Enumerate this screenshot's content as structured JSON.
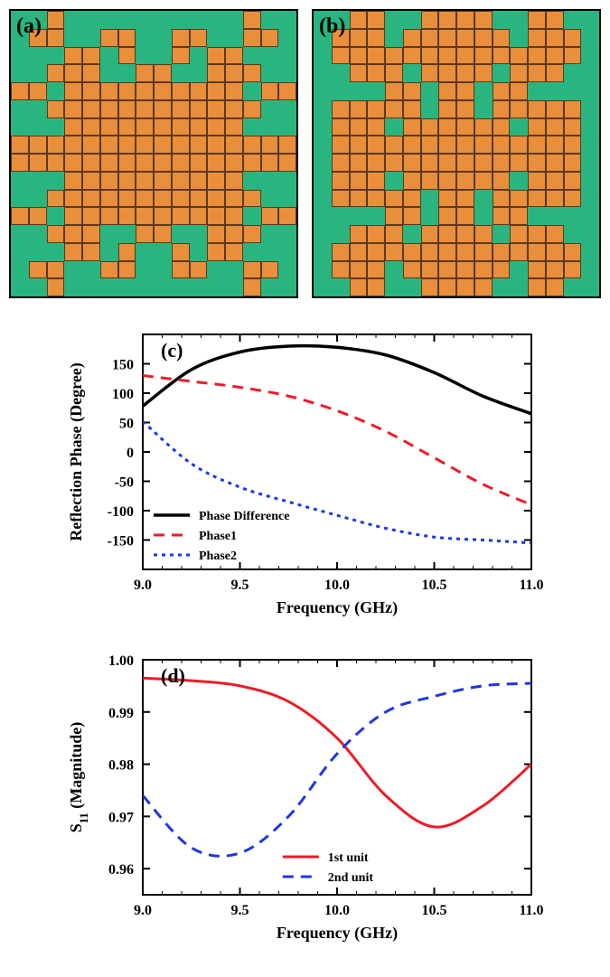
{
  "panel_a": {
    "label": "(a)",
    "bg_color": "#29b580",
    "cell_color": "#e98e3a",
    "cell_border": "#5a3a1a",
    "grid_size": 16,
    "rows": [
      "0010000000000100",
      "0110011001100110",
      "0001101001011000",
      "0011100110011100",
      "1101111111111011",
      "0011111111111100",
      "0001111111111000",
      "1111111111111111",
      "1111111111111111",
      "0001111111111000",
      "0011111111111100",
      "1101111111111011",
      "0011100110011100",
      "0001101001011000",
      "0110011001100110",
      "0010000000000100"
    ]
  },
  "panel_b": {
    "label": "(b)",
    "bg_color": "#29b580",
    "cell_color": "#e98e3a",
    "cell_border": "#5a3a1a",
    "grid_size": 16,
    "rows": [
      "0011001111001100",
      "0111011111101110",
      "0111111111111110",
      "0011101111011100",
      "0000110110110000",
      "0111110110111110",
      "0111011111101110",
      "0111111111111110",
      "0111111111111110",
      "0111011111101110",
      "0111110110111110",
      "0000110110110000",
      "0011101111011100",
      "0111111111111110",
      "0111011111101110",
      "0011001111001100"
    ]
  },
  "chart_c": {
    "label": "(c)",
    "type": "line",
    "xlabel": "Frequency (GHz)",
    "ylabel": "Reflection Phase (Degree)",
    "xlim": [
      9.0,
      11.0
    ],
    "ylim": [
      -200,
      200
    ],
    "xticks": [
      9.0,
      9.5,
      10.0,
      10.5,
      11.0
    ],
    "yticks": [
      -150,
      -100,
      -50,
      0,
      50,
      100,
      150
    ],
    "axis_fontsize": 18,
    "tick_fontsize": 16,
    "label_fontsize": 16,
    "axis_color": "#000000",
    "background_color": "#ffffff",
    "legend_position": "bottom-left",
    "legend_fontsize": 14,
    "series": [
      {
        "name": "Phase Difference",
        "color": "#000000",
        "style": "solid",
        "width": 3.5,
        "x": [
          9.0,
          9.25,
          9.5,
          9.75,
          10.0,
          10.25,
          10.5,
          10.75,
          11.0
        ],
        "y": [
          78,
          140,
          170,
          180,
          178,
          165,
          135,
          95,
          65
        ]
      },
      {
        "name": "Phase1",
        "color": "#ed1c24",
        "style": "dashed",
        "dash": "12,8",
        "width": 3,
        "x": [
          9.0,
          9.25,
          9.5,
          9.75,
          10.0,
          10.25,
          10.5,
          10.75,
          11.0
        ],
        "y": [
          130,
          120,
          110,
          95,
          70,
          35,
          -10,
          -55,
          -90
        ]
      },
      {
        "name": "Phase2",
        "color": "#1b37e6",
        "style": "dotted",
        "dash": "4,5",
        "width": 3,
        "x": [
          9.0,
          9.25,
          9.5,
          9.75,
          10.0,
          10.25,
          10.5,
          10.75,
          11.0
        ],
        "y": [
          52,
          -20,
          -60,
          -85,
          -108,
          -130,
          -145,
          -150,
          -155
        ]
      }
    ]
  },
  "chart_d": {
    "label": "(d)",
    "type": "line",
    "xlabel": "Frequency (GHz)",
    "ylabel": "S₁₁ (Magnitude)",
    "ylabel_plain": "S11 (Magnitude)",
    "xlim": [
      9.0,
      11.0
    ],
    "ylim": [
      0.955,
      1.0
    ],
    "xticks": [
      9.0,
      9.5,
      10.0,
      10.5,
      11.0
    ],
    "yticks": [
      0.96,
      0.97,
      0.98,
      0.99,
      1.0
    ],
    "axis_fontsize": 18,
    "tick_fontsize": 16,
    "label_fontsize": 16,
    "axis_color": "#000000",
    "background_color": "#ffffff",
    "legend_position": "bottom-center",
    "legend_fontsize": 14,
    "series": [
      {
        "name": "1st unit",
        "color": "#ed1c24",
        "style": "solid",
        "width": 3,
        "x": [
          9.0,
          9.25,
          9.5,
          9.75,
          10.0,
          10.25,
          10.5,
          10.75,
          11.0
        ],
        "y": [
          0.9965,
          0.996,
          0.995,
          0.992,
          0.985,
          0.974,
          0.968,
          0.972,
          0.98
        ]
      },
      {
        "name": "2nd unit",
        "color": "#1b37e6",
        "style": "dashed",
        "dash": "12,8",
        "width": 3,
        "x": [
          9.0,
          9.25,
          9.5,
          9.75,
          10.0,
          10.25,
          10.5,
          10.75,
          11.0
        ],
        "y": [
          0.974,
          0.964,
          0.963,
          0.97,
          0.982,
          0.99,
          0.993,
          0.995,
          0.9955
        ]
      }
    ]
  }
}
